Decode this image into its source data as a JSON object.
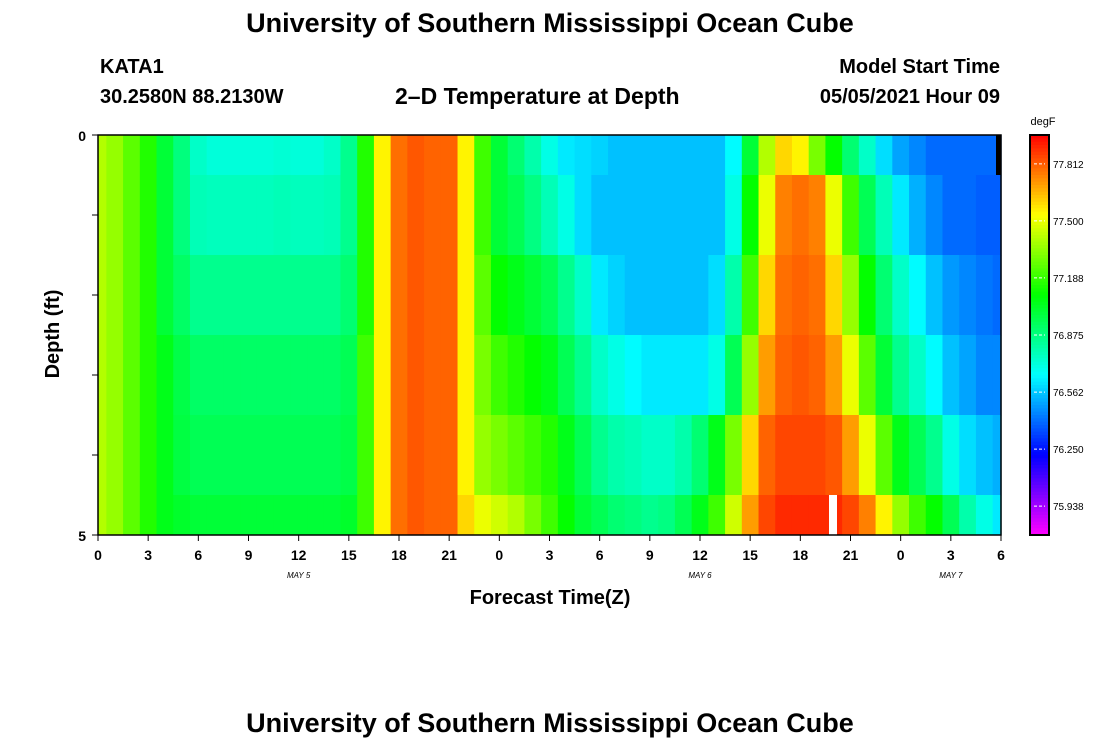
{
  "header": {
    "title": "University of Southern Mississippi Ocean Cube",
    "station": "KATA1",
    "coords": "30.2580N  88.2130W",
    "subtitle": "2–D Temperature at Depth",
    "model_start_label": "Model Start Time",
    "model_start_value": "05/05/2021 Hour 09"
  },
  "footer": {
    "title": "University of Southern Mississippi Ocean Cube"
  },
  "chart_data": {
    "type": "heatmap",
    "title": "2–D Temperature at Depth",
    "xlabel": "Forecast Time(Z)",
    "ylabel": "Depth (ft)",
    "x_ticks": [
      "0",
      "3",
      "6",
      "9",
      "12",
      "15",
      "18",
      "21",
      "0",
      "3",
      "6",
      "9",
      "12",
      "15",
      "18",
      "21",
      "0",
      "3",
      "6"
    ],
    "date_labels": [
      "MAY 5",
      "MAY 6",
      "MAY 7"
    ],
    "y_ticks": [
      "0",
      "5"
    ],
    "ylim": [
      0,
      5
    ],
    "colorbar": {
      "unit": "degF",
      "tick_labels": [
        "77.812",
        "77.500",
        "77.188",
        "76.875",
        "76.562",
        "76.250",
        "75.938"
      ],
      "range": [
        75.78,
        77.97
      ]
    },
    "x_hours": [
      0,
      1,
      2,
      3,
      4,
      5,
      6,
      7,
      8,
      9,
      10,
      11,
      12,
      13,
      14,
      15,
      16,
      17,
      18,
      19,
      20,
      21,
      22,
      23,
      24,
      25,
      26,
      27,
      28,
      29,
      30,
      31,
      32,
      33,
      34,
      35,
      36,
      37,
      38,
      39,
      40,
      41,
      42,
      43,
      44,
      45,
      46,
      47,
      48,
      49,
      50,
      51,
      52,
      53,
      54
    ],
    "depth_layers": [
      "0-0.5",
      "0.5-1.5",
      "1.5-2.5",
      "2.5-3.5",
      "3.5-4.5",
      "4.5-5"
    ],
    "temperature": [
      [
        77.4,
        77.35,
        77.25,
        77.15,
        77.0,
        76.88,
        76.75,
        76.72,
        76.72,
        76.72,
        76.72,
        76.73,
        76.72,
        76.72,
        76.75,
        76.85,
        77.15,
        77.55,
        77.78,
        77.82,
        77.8,
        77.8,
        77.55,
        77.2,
        77.0,
        76.9,
        76.8,
        76.7,
        76.62,
        76.6,
        76.58,
        76.55,
        76.55,
        76.55,
        76.55,
        76.55,
        76.55,
        76.55,
        76.65,
        77.0,
        77.4,
        77.6,
        77.55,
        77.3,
        77.1,
        76.9,
        76.75,
        76.6,
        76.5,
        76.45,
        76.4,
        76.4,
        76.4,
        76.4,
        76.4
      ],
      [
        77.4,
        77.35,
        77.25,
        77.15,
        77.0,
        76.88,
        76.78,
        76.77,
        76.77,
        76.77,
        76.77,
        76.78,
        76.77,
        76.77,
        76.78,
        76.85,
        77.15,
        77.55,
        77.78,
        77.82,
        77.8,
        77.8,
        77.55,
        77.2,
        77.0,
        76.95,
        76.87,
        76.78,
        76.7,
        76.6,
        76.55,
        76.55,
        76.55,
        76.55,
        76.55,
        76.55,
        76.55,
        76.55,
        76.7,
        77.1,
        77.5,
        77.75,
        77.78,
        77.75,
        77.5,
        77.2,
        76.95,
        76.78,
        76.62,
        76.52,
        76.45,
        76.4,
        76.4,
        76.38,
        76.38
      ],
      [
        77.4,
        77.35,
        77.25,
        77.15,
        77.0,
        76.92,
        76.85,
        76.85,
        76.85,
        76.85,
        76.85,
        76.85,
        76.85,
        76.85,
        76.85,
        76.9,
        77.15,
        77.55,
        77.78,
        77.82,
        77.8,
        77.8,
        77.55,
        77.25,
        77.1,
        77.05,
        77.0,
        76.95,
        76.85,
        76.75,
        76.62,
        76.58,
        76.55,
        76.55,
        76.55,
        76.55,
        76.55,
        76.6,
        76.8,
        77.2,
        77.6,
        77.78,
        77.8,
        77.78,
        77.6,
        77.35,
        77.1,
        76.9,
        76.75,
        76.65,
        76.55,
        76.48,
        76.45,
        76.42,
        76.4
      ],
      [
        77.4,
        77.35,
        77.25,
        77.15,
        77.05,
        76.97,
        76.92,
        76.92,
        76.92,
        76.92,
        76.92,
        76.92,
        76.92,
        76.92,
        76.92,
        76.95,
        77.2,
        77.55,
        77.78,
        77.82,
        77.8,
        77.8,
        77.55,
        77.3,
        77.2,
        77.15,
        77.1,
        77.05,
        76.95,
        76.85,
        76.75,
        76.7,
        76.65,
        76.62,
        76.62,
        76.62,
        76.62,
        76.7,
        76.95,
        77.35,
        77.7,
        77.8,
        77.82,
        77.8,
        77.7,
        77.5,
        77.25,
        77.0,
        76.85,
        76.75,
        76.65,
        76.55,
        76.5,
        76.45,
        76.45
      ],
      [
        77.4,
        77.35,
        77.25,
        77.15,
        77.05,
        76.98,
        76.95,
        76.95,
        76.95,
        76.95,
        76.95,
        76.95,
        76.95,
        76.95,
        76.95,
        76.97,
        77.2,
        77.55,
        77.78,
        77.82,
        77.8,
        77.8,
        77.55,
        77.35,
        77.3,
        77.25,
        77.2,
        77.15,
        77.05,
        76.95,
        76.85,
        76.8,
        76.78,
        76.75,
        76.75,
        76.8,
        76.9,
        77.05,
        77.3,
        77.6,
        77.8,
        77.85,
        77.85,
        77.85,
        77.82,
        77.7,
        77.5,
        77.25,
        77.05,
        76.95,
        76.85,
        76.7,
        76.6,
        76.55,
        76.52
      ],
      [
        77.4,
        77.35,
        77.25,
        77.15,
        77.05,
        77.02,
        77.0,
        77.0,
        77.0,
        77.0,
        77.0,
        77.0,
        77.0,
        77.0,
        77.0,
        77.02,
        77.2,
        77.55,
        77.78,
        77.82,
        77.8,
        77.8,
        77.6,
        77.5,
        77.45,
        77.4,
        77.3,
        77.2,
        77.1,
        77.0,
        76.95,
        76.9,
        76.88,
        76.85,
        76.87,
        76.95,
        77.05,
        77.2,
        77.45,
        77.7,
        77.85,
        77.9,
        77.9,
        77.9,
        77.9,
        77.85,
        77.75,
        77.55,
        77.35,
        77.2,
        77.1,
        76.95,
        76.8,
        76.7,
        76.62
      ]
    ]
  }
}
